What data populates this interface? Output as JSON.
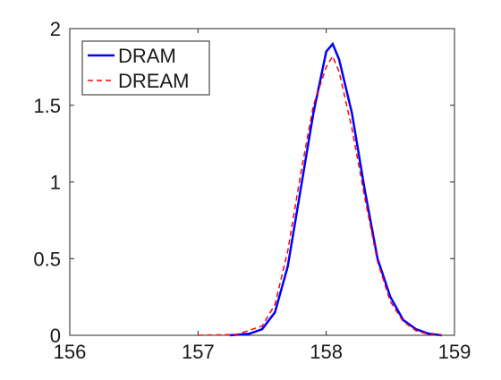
{
  "chart_data": {
    "type": "line",
    "xlim": [
      156,
      159
    ],
    "xticks": [
      156,
      157,
      158,
      159
    ],
    "ylim": [
      0,
      2
    ],
    "yticks": [
      0,
      0.5,
      1,
      1.5,
      2
    ],
    "legend": "upper-left",
    "series": [
      {
        "name": "DRAM",
        "color": "#0000ff",
        "style": "solid",
        "x": [
          157.25,
          157.4,
          157.5,
          157.6,
          157.7,
          157.8,
          157.9,
          158.0,
          158.05,
          158.1,
          158.2,
          158.3,
          158.4,
          158.5,
          158.6,
          158.7,
          158.8,
          158.9
        ],
        "values": [
          0,
          0.01,
          0.04,
          0.15,
          0.45,
          0.95,
          1.45,
          1.85,
          1.9,
          1.8,
          1.45,
          0.95,
          0.5,
          0.25,
          0.1,
          0.04,
          0.01,
          0
        ]
      },
      {
        "name": "DREAM",
        "color": "#ff0000",
        "style": "dashed",
        "x": [
          157.0,
          157.3,
          157.5,
          157.6,
          157.7,
          157.8,
          157.9,
          158.0,
          158.05,
          158.1,
          158.2,
          158.3,
          158.4,
          158.5,
          158.6,
          158.7,
          158.8,
          158.9
        ],
        "values": [
          0,
          0.005,
          0.06,
          0.2,
          0.55,
          1.05,
          1.5,
          1.75,
          1.82,
          1.72,
          1.35,
          0.9,
          0.48,
          0.22,
          0.09,
          0.03,
          0.005,
          0
        ]
      }
    ]
  }
}
